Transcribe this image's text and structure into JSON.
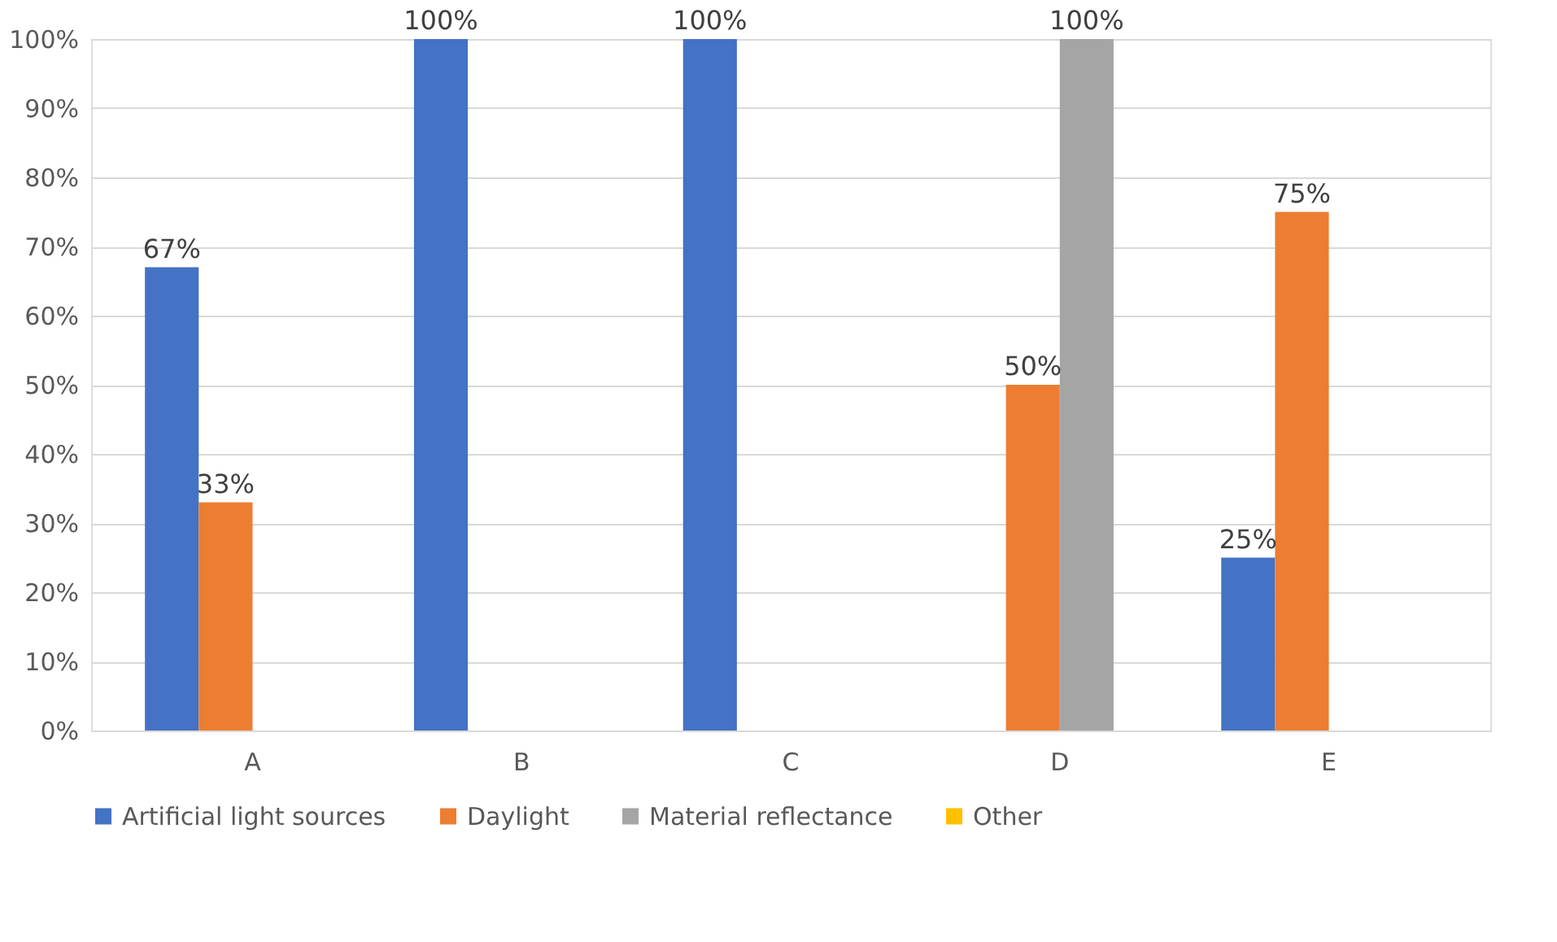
{
  "chart_data": {
    "type": "bar",
    "categories": [
      "A",
      "B",
      "C",
      "D",
      "E"
    ],
    "series": [
      {
        "name": "Artificial light sources",
        "color": "#4472c4",
        "values": [
          67,
          100,
          100,
          0,
          25
        ],
        "value_labels": [
          "67%",
          "100%",
          "100%",
          null,
          "25%"
        ]
      },
      {
        "name": "Daylight",
        "color": "#ed7d31",
        "values": [
          33,
          0,
          0,
          50,
          75
        ],
        "value_labels": [
          "33%",
          null,
          null,
          "50%",
          "75%"
        ]
      },
      {
        "name": "Material reflectance",
        "color": "#a5a5a5",
        "values": [
          0,
          0,
          0,
          100,
          0
        ],
        "value_labels": [
          null,
          null,
          null,
          "100%",
          null
        ]
      },
      {
        "name": "Other",
        "color": "#ffc000",
        "values": [
          0,
          0,
          0,
          0,
          0
        ],
        "value_labels": [
          null,
          null,
          null,
          null,
          null
        ]
      }
    ],
    "ylim": [
      0,
      100
    ],
    "yticks": [
      {
        "value": 0,
        "label": "0%"
      },
      {
        "value": 10,
        "label": "10%"
      },
      {
        "value": 20,
        "label": "20%"
      },
      {
        "value": 30,
        "label": "30%"
      },
      {
        "value": 40,
        "label": "40%"
      },
      {
        "value": 50,
        "label": "50%"
      },
      {
        "value": 60,
        "label": "60%"
      },
      {
        "value": 70,
        "label": "70%"
      },
      {
        "value": 80,
        "label": "80%"
      },
      {
        "value": 90,
        "label": "90%"
      },
      {
        "value": 100,
        "label": "100%"
      }
    ],
    "grid": "y",
    "legend": "bottom"
  }
}
